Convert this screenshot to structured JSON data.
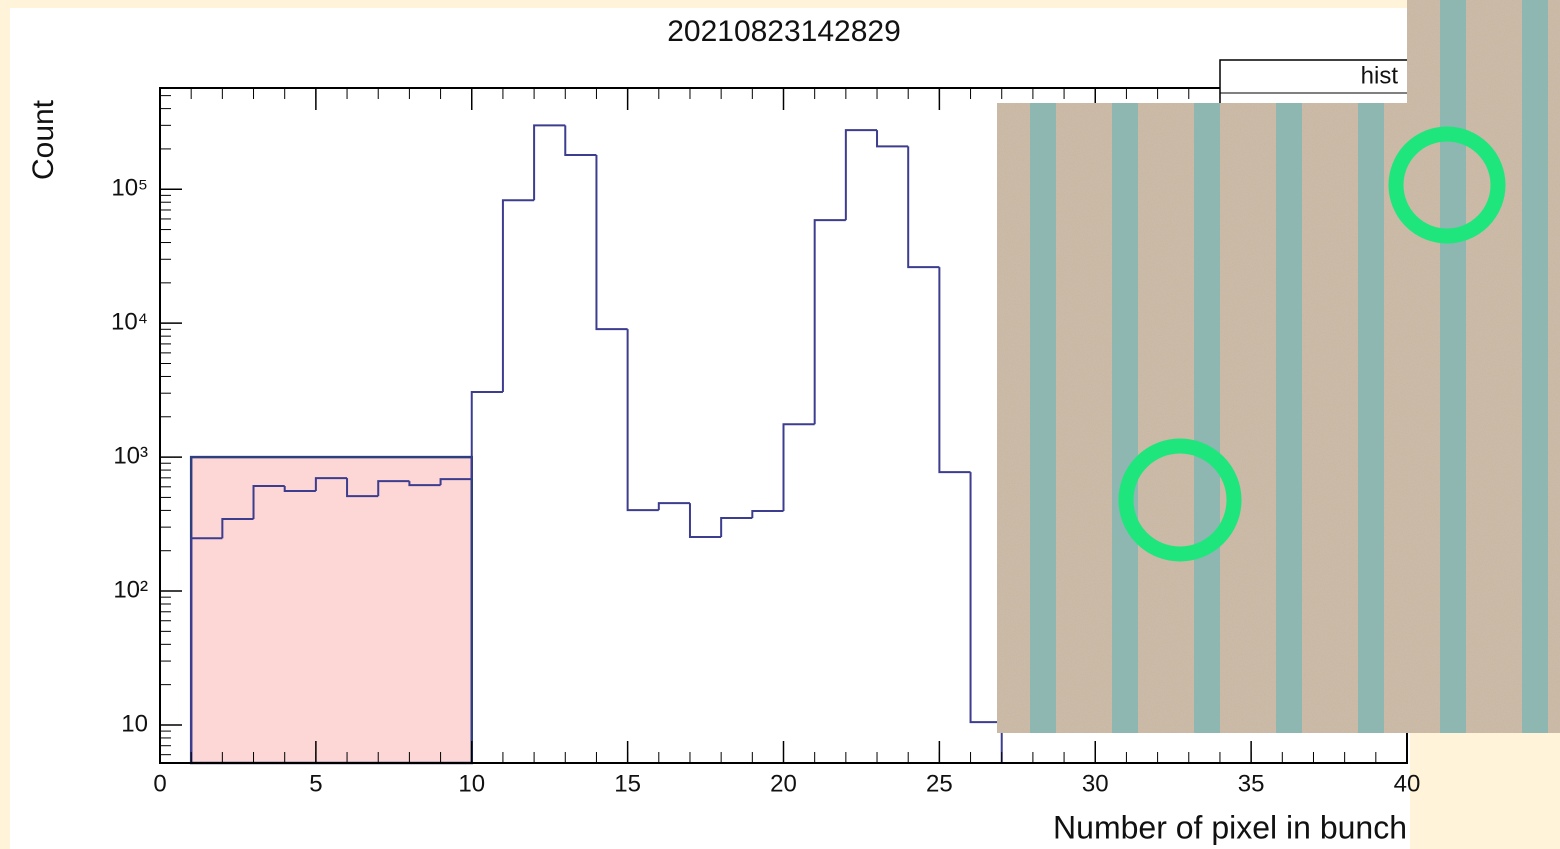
{
  "chart_data": {
    "type": "histogram",
    "title": "20210823142829",
    "x_label": "Number of pixel in bunch",
    "y_label": "Count",
    "bins": [
      0,
      1,
      2,
      3,
      4,
      5,
      6,
      7,
      8,
      9,
      10,
      11,
      12,
      13,
      14,
      15,
      16,
      17,
      18,
      19,
      20,
      21,
      22,
      23,
      24,
      25,
      26,
      27,
      28,
      29,
      30,
      31,
      32,
      33,
      34,
      35,
      36,
      37,
      38,
      39,
      40
    ],
    "values": [
      0,
      248,
      345,
      608,
      558,
      697,
      511,
      662,
      618,
      685,
      3060,
      82800,
      300000,
      180000,
      9020,
      402,
      453,
      253,
      351,
      396,
      1760,
      58800,
      276000,
      209000,
      26200,
      773,
      10.5,
      0,
      0,
      0,
      0,
      0,
      0,
      0,
      0,
      0,
      0,
      0,
      0,
      0
    ],
    "color": "#3d3d8f",
    "xlim": [
      0,
      40
    ],
    "xticks": [
      0,
      5,
      10,
      15,
      20,
      25,
      30,
      35,
      40
    ],
    "ylim": [
      5.2,
      570000
    ],
    "log_y": true,
    "yticks": [
      10,
      {
        "value": 100,
        "label": "10²"
      },
      {
        "value": 1000,
        "label": "10³"
      },
      {
        "value": 10000,
        "label": "10⁴"
      },
      {
        "value": 100000,
        "label": "10⁵"
      }
    ],
    "highlight": {
      "x": [
        1,
        10
      ],
      "top": 1000,
      "color": "#fdd6d6"
    },
    "stats_title": "hist"
  }
}
